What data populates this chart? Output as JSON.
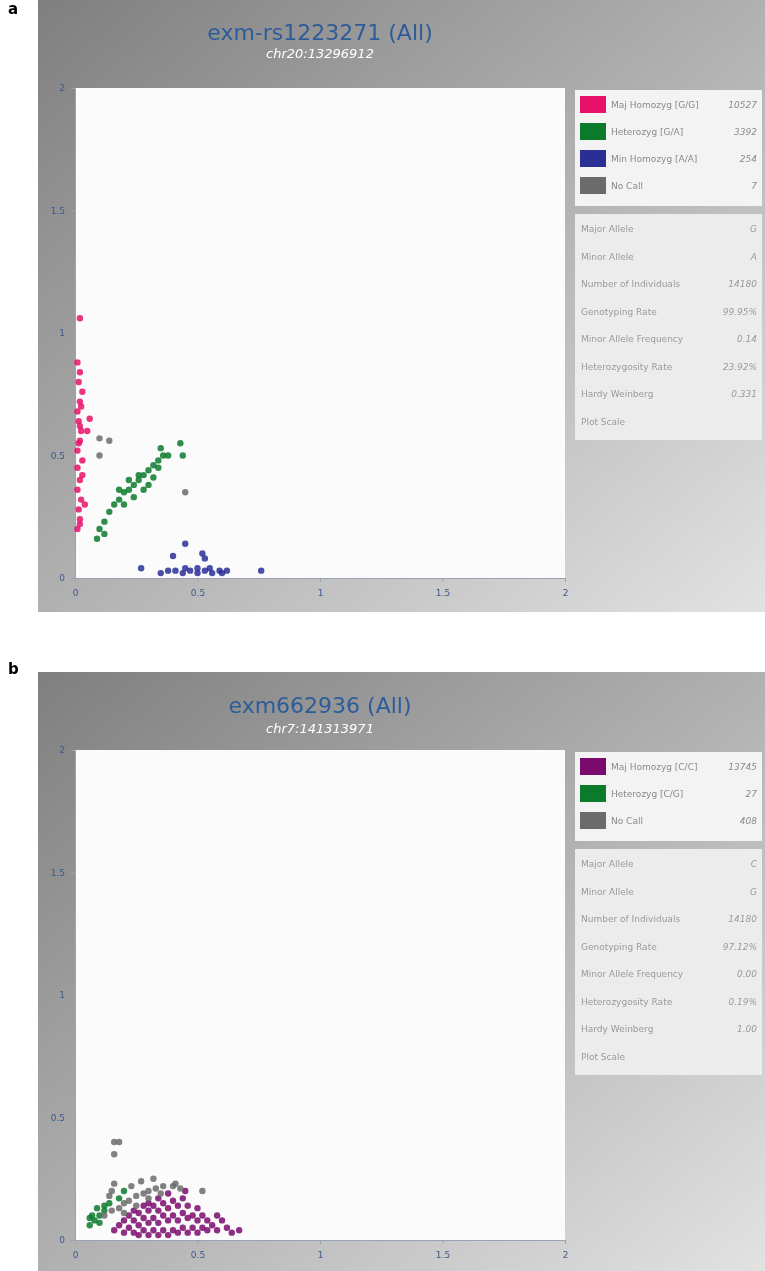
{
  "chart_data": [
    {
      "type": "scatter",
      "title": "exm-rs1223271 (All)",
      "subtitle": "chr20:13296912",
      "annotations": [
        "a",
        "10527",
        "3392",
        "254",
        "7"
      ],
      "xlim": [
        0,
        2
      ],
      "ylim": [
        0,
        2
      ],
      "xticks": [
        0,
        0.5,
        1,
        1.5,
        2
      ],
      "yticks": [
        0,
        0.5,
        1,
        1.5,
        2
      ],
      "legend": "right",
      "marker": "circle",
      "series": [
        {
          "name": "Maj Homozyg [G/G]",
          "color": "#e8116a",
          "x": [
            0.01,
            0.02,
            0.015,
            0.025,
            0.01,
            0.02,
            0.03,
            0.03,
            0.01,
            0.02,
            0.025,
            0.015,
            0.01,
            0.02,
            0.03,
            0.015,
            0.02,
            0.01,
            0.025,
            0.02,
            0.015,
            0.01,
            0.02,
            0.06,
            0.05,
            0.04,
            0.02
          ],
          "values": [
            0.2,
            0.24,
            0.28,
            0.32,
            0.36,
            0.4,
            0.42,
            0.48,
            0.52,
            0.56,
            0.6,
            0.64,
            0.68,
            0.72,
            0.76,
            0.8,
            0.84,
            0.88,
            0.7,
            0.62,
            0.55,
            0.45,
            1.06,
            0.65,
            0.6,
            0.3,
            0.22
          ]
        },
        {
          "name": "Heterozyg [G/A]",
          "color": "#0b7a2b",
          "x": [
            0.1,
            0.12,
            0.14,
            0.16,
            0.18,
            0.2,
            0.22,
            0.24,
            0.26,
            0.28,
            0.3,
            0.32,
            0.34,
            0.36,
            0.38,
            0.2,
            0.24,
            0.28,
            0.32,
            0.22,
            0.26,
            0.3,
            0.34,
            0.18,
            0.09,
            0.12,
            0.35,
            0.43,
            0.44
          ],
          "values": [
            0.2,
            0.23,
            0.27,
            0.3,
            0.32,
            0.35,
            0.36,
            0.38,
            0.4,
            0.42,
            0.44,
            0.46,
            0.48,
            0.5,
            0.5,
            0.3,
            0.33,
            0.36,
            0.41,
            0.4,
            0.42,
            0.38,
            0.45,
            0.36,
            0.16,
            0.18,
            0.53,
            0.55,
            0.5
          ]
        },
        {
          "name": "Min Homozyg [A/A]",
          "color": "#2a2f96",
          "x": [
            0.38,
            0.41,
            0.44,
            0.47,
            0.5,
            0.53,
            0.56,
            0.59,
            0.62,
            0.45,
            0.5,
            0.55,
            0.6,
            0.27,
            0.35,
            0.52,
            0.53,
            0.45,
            0.4,
            0.76
          ],
          "values": [
            0.03,
            0.03,
            0.02,
            0.03,
            0.02,
            0.03,
            0.02,
            0.03,
            0.03,
            0.04,
            0.04,
            0.04,
            0.02,
            0.04,
            0.02,
            0.1,
            0.08,
            0.14,
            0.09,
            0.03
          ]
        },
        {
          "name": "No Call",
          "color": "#6b6b6b",
          "x": [
            0.45,
            0.1,
            0.14,
            0.1
          ],
          "values": [
            0.35,
            0.57,
            0.56,
            0.5
          ]
        }
      ]
    },
    {
      "type": "other",
      "categories": [
        "Major Allele",
        "Minor Allele",
        "Number of Individuals",
        "Genotyping Rate",
        "Minor Allele Frequency",
        "Heterozygosity Rate",
        "Hardy Weinberg",
        "Plot Scale"
      ],
      "value_labels": [
        "G",
        "A",
        "14180",
        "99.95%",
        "0.14",
        "23.92%",
        "0.331",
        null
      ]
    },
    {
      "type": "scatter",
      "title": "exm662936 (All)",
      "subtitle": "chr7:141313971",
      "annotations": [
        "b",
        "13745",
        "27",
        "408"
      ],
      "xlim": [
        0,
        2
      ],
      "ylim": [
        0,
        2
      ],
      "xticks": [
        0,
        0.5,
        1,
        1.5,
        2
      ],
      "yticks": [
        0,
        0.5,
        1,
        1.5,
        2
      ],
      "legend": "right",
      "marker": "circle",
      "series": [
        {
          "name": "Maj Homozyg [C/C]",
          "color": "#7a0a6e",
          "x": [
            0.16,
            0.18,
            0.2,
            0.2,
            0.22,
            0.22,
            0.24,
            0.24,
            0.24,
            0.26,
            0.26,
            0.26,
            0.28,
            0.28,
            0.28,
            0.3,
            0.3,
            0.3,
            0.3,
            0.32,
            0.32,
            0.32,
            0.34,
            0.34,
            0.34,
            0.34,
            0.36,
            0.36,
            0.36,
            0.38,
            0.38,
            0.38,
            0.38,
            0.4,
            0.4,
            0.4,
            0.42,
            0.42,
            0.42,
            0.44,
            0.44,
            0.44,
            0.46,
            0.46,
            0.46,
            0.48,
            0.48,
            0.5,
            0.5,
            0.5,
            0.52,
            0.52,
            0.54,
            0.54,
            0.56,
            0.58,
            0.6,
            0.62,
            0.64,
            0.67,
            0.58,
            0.45
          ],
          "values": [
            0.04,
            0.06,
            0.03,
            0.08,
            0.05,
            0.1,
            0.03,
            0.08,
            0.12,
            0.02,
            0.06,
            0.11,
            0.04,
            0.09,
            0.14,
            0.02,
            0.07,
            0.12,
            0.15,
            0.04,
            0.09,
            0.14,
            0.02,
            0.07,
            0.12,
            0.17,
            0.04,
            0.1,
            0.15,
            0.02,
            0.08,
            0.13,
            0.19,
            0.04,
            0.1,
            0.16,
            0.03,
            0.08,
            0.14,
            0.05,
            0.11,
            0.17,
            0.03,
            0.09,
            0.14,
            0.05,
            0.1,
            0.03,
            0.08,
            0.13,
            0.05,
            0.1,
            0.04,
            0.08,
            0.06,
            0.04,
            0.08,
            0.05,
            0.03,
            0.04,
            0.1,
            0.2
          ]
        },
        {
          "name": "Heterozyg [C/G]",
          "color": "#0b7a2b",
          "x": [
            0.06,
            0.08,
            0.1,
            0.12,
            0.07,
            0.1,
            0.12,
            0.14,
            0.09,
            0.06,
            0.18,
            0.2
          ],
          "values": [
            0.06,
            0.08,
            0.1,
            0.12,
            0.1,
            0.07,
            0.14,
            0.15,
            0.13,
            0.09,
            0.17,
            0.2
          ]
        },
        {
          "name": "No Call",
          "color": "#6b6b6b",
          "x": [
            0.12,
            0.15,
            0.18,
            0.2,
            0.22,
            0.25,
            0.28,
            0.3,
            0.33,
            0.36,
            0.4,
            0.43,
            0.2,
            0.25,
            0.3,
            0.35,
            0.23,
            0.27,
            0.14,
            0.16,
            0.32,
            0.41,
            0.52,
            0.16,
            0.18,
            0.16,
            0.15
          ],
          "values": [
            0.1,
            0.12,
            0.13,
            0.15,
            0.16,
            0.18,
            0.19,
            0.2,
            0.21,
            0.22,
            0.22,
            0.21,
            0.11,
            0.14,
            0.17,
            0.19,
            0.22,
            0.24,
            0.18,
            0.23,
            0.25,
            0.23,
            0.2,
            0.4,
            0.4,
            0.35,
            0.2
          ]
        }
      ]
    },
    {
      "type": "other",
      "categories": [
        "Major Allele",
        "Minor Allele",
        "Number of Individuals",
        "Genotyping Rate",
        "Minor Allele Frequency",
        "Heterozygosity Rate",
        "Hardy Weinberg",
        "Plot Scale"
      ],
      "value_labels": [
        "C",
        "G",
        "14180",
        "97.12%",
        "0.00",
        "0.19%",
        "1.00",
        null
      ]
    }
  ]
}
